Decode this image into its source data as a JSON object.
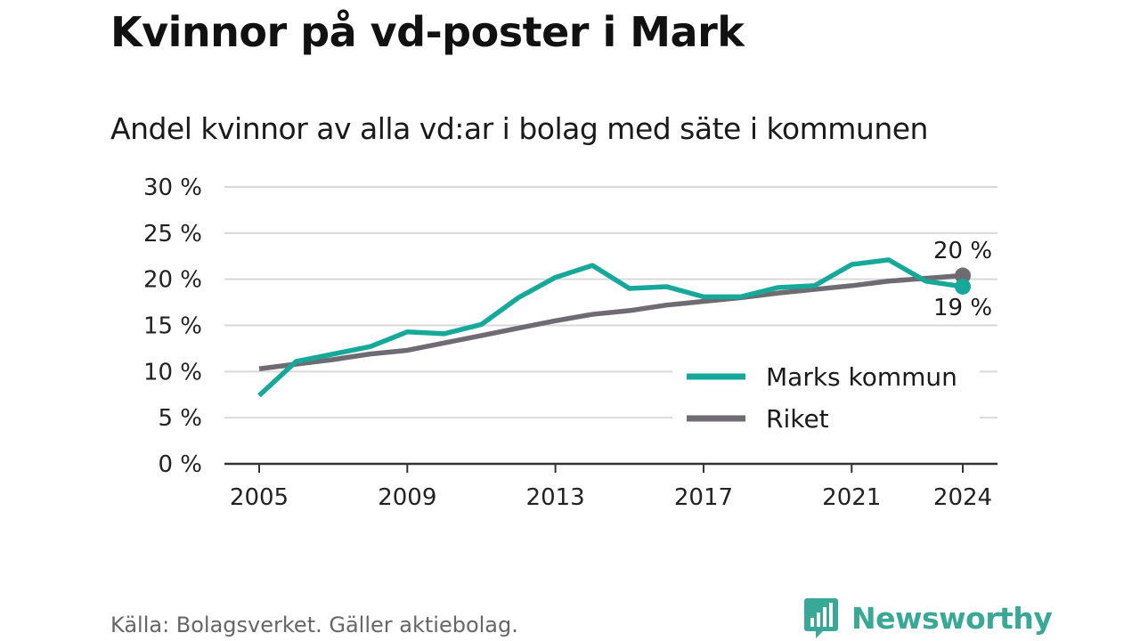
{
  "header": {
    "title": "Kvinnor på vd-poster i Mark",
    "subtitle": "Andel kvinnor av alla vd:ar i bolag med säte i kommunen"
  },
  "footer": {
    "source": "Källa: Bolagsverket. Gäller aktiebolag.",
    "brand": "Newsworthy",
    "brand_icon": "bar-chart-speech-bubble-icon"
  },
  "colors": {
    "series_marks": "#16a99a",
    "series_riket": "#6e6b73",
    "grid": "#d9d9d9",
    "axis": "#333333",
    "brand": "#3aa896"
  },
  "chart_data": {
    "type": "line",
    "x": [
      2005,
      2006,
      2007,
      2008,
      2009,
      2010,
      2011,
      2012,
      2013,
      2014,
      2015,
      2016,
      2017,
      2018,
      2019,
      2020,
      2021,
      2022,
      2023,
      2024
    ],
    "series": [
      {
        "name": "Marks kommun",
        "values": [
          7.4,
          11.1,
          11.9,
          12.7,
          14.3,
          14.1,
          15.1,
          18.0,
          20.2,
          21.5,
          19.0,
          19.2,
          18.1,
          18.1,
          19.1,
          19.3,
          21.6,
          22.1,
          19.8,
          19.2
        ]
      },
      {
        "name": "Riket",
        "values": [
          10.3,
          10.8,
          11.3,
          11.9,
          12.3,
          13.1,
          13.9,
          14.7,
          15.5,
          16.2,
          16.6,
          17.2,
          17.6,
          18.0,
          18.5,
          18.9,
          19.3,
          19.8,
          20.1,
          20.4
        ]
      }
    ],
    "end_labels": {
      "Riket": "20 %",
      "Marks kommun": "19 %"
    },
    "xticks": [
      2005,
      2009,
      2013,
      2017,
      2021,
      2024
    ],
    "yticks": [
      0,
      5,
      10,
      15,
      20,
      25,
      30
    ],
    "ytick_labels": [
      "0 %",
      "5 %",
      "10 %",
      "15 %",
      "20 %",
      "25 %",
      "30 %"
    ],
    "ylim": [
      0,
      30
    ],
    "xlim": [
      2005,
      2024
    ],
    "grid": true,
    "legend": {
      "position": "bottom-right",
      "entries": [
        "Marks kommun",
        "Riket"
      ]
    }
  }
}
